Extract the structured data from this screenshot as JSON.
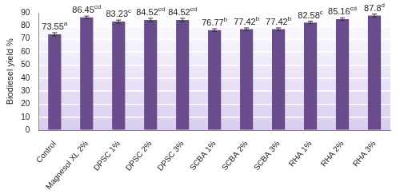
{
  "chart_data": {
    "type": "bar",
    "y_label": "Biodiesel yield %",
    "categories": [
      "Control",
      "Magnesol XL 2%",
      "DPSC 1%",
      "DPSC 2%",
      "DPSC 3%",
      "SCBA 1%",
      "SCBA 2%",
      "SCBA 3%",
      "RHA 1%",
      "RHA 2%",
      "RHA 3%"
    ],
    "values": [
      73.55,
      86.45,
      83.23,
      84.52,
      84.52,
      76.77,
      77.42,
      77.42,
      82.58,
      85.16,
      87.8
    ],
    "errors": [
      1.2,
      1.0,
      1.2,
      1.2,
      1.2,
      1.0,
      1.0,
      1.0,
      1.0,
      1.0,
      1.2
    ],
    "letters": [
      "a",
      "cd",
      "c",
      "cd",
      "cd",
      "b",
      "b",
      "b",
      "c",
      "cd",
      "d"
    ],
    "color": "#6a4c8c",
    "ylim": [
      0,
      90
    ],
    "yticks": [
      0,
      10,
      20,
      30,
      40,
      50,
      60,
      70,
      80,
      90
    ],
    "grid": true,
    "data_labels": true
  }
}
